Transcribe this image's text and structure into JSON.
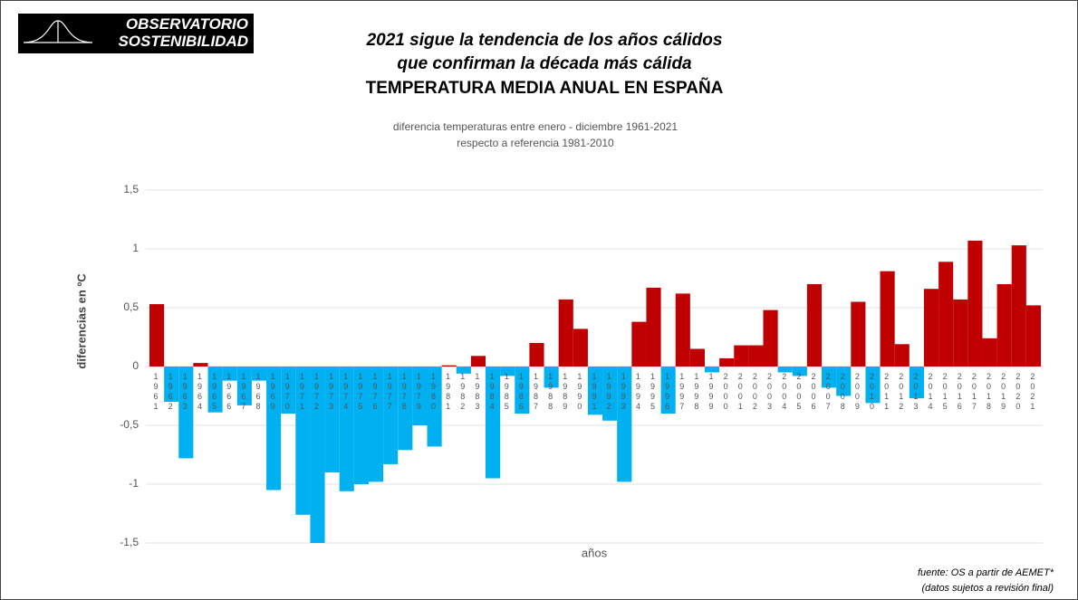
{
  "logo": {
    "line1": "OBSERVATORIO",
    "line2": "SOSTENIBILIDAD"
  },
  "chart_data": {
    "type": "bar",
    "title_lines": [
      "2021 sigue la tendencia de los años cálidos",
      "que confirman la década más cálida",
      "TEMPERATURA MEDIA ANUAL EN ESPAÑA"
    ],
    "subtitle_lines": [
      "diferencia temperaturas entre enero - diciembre 1961-2021",
      "respecto a referencia 1981-2010"
    ],
    "y_label": "diferencias en ºC",
    "x_label": "años",
    "categories": [
      "1961",
      "1962",
      "1963",
      "1964",
      "1965",
      "1966",
      "1967",
      "1968",
      "1969",
      "1970",
      "1971",
      "1972",
      "1973",
      "1974",
      "1975",
      "1976",
      "1977",
      "1978",
      "1979",
      "1980",
      "1981",
      "1982",
      "1983",
      "1984",
      "1985",
      "1986",
      "1987",
      "1988",
      "1989",
      "1990",
      "1991",
      "1992",
      "1993",
      "1994",
      "1995",
      "1996",
      "1997",
      "1998",
      "1999",
      "2000",
      "2001",
      "2002",
      "2003",
      "2004",
      "2005",
      "2006",
      "2007",
      "2008",
      "2009",
      "2010",
      "2011",
      "2012",
      "2013",
      "2014",
      "2015",
      "2016",
      "2017",
      "2018",
      "2019",
      "2020",
      "2021"
    ],
    "values": [
      0.53,
      -0.3,
      -0.78,
      0.03,
      -0.39,
      -0.12,
      -0.33,
      -0.12,
      -1.05,
      -0.4,
      -1.26,
      -1.5,
      -0.9,
      -1.06,
      -1.0,
      -0.98,
      -0.83,
      -0.71,
      -0.5,
      -0.68,
      0.01,
      -0.06,
      0.09,
      -0.95,
      -0.08,
      -0.4,
      0.2,
      -0.18,
      0.57,
      0.32,
      -0.41,
      -0.46,
      -0.98,
      0.38,
      0.67,
      -0.4,
      0.62,
      0.15,
      -0.05,
      0.07,
      0.18,
      0.18,
      0.48,
      -0.05,
      -0.08,
      0.7,
      -0.18,
      -0.25,
      0.55,
      -0.31,
      0.81,
      0.19,
      -0.27,
      0.66,
      0.89,
      0.57,
      1.07,
      0.24,
      0.7,
      1.03,
      0.52
    ],
    "colors": {
      "above": "#c00000",
      "below": "#00b0f0"
    },
    "ylim": [
      -1.5,
      1.5
    ],
    "yticks": [
      {
        "value": -1.5,
        "label": "-1,5"
      },
      -1,
      {
        "value": -0.5,
        "label": "-0,5"
      },
      0,
      {
        "value": 0.5,
        "label": "0,5"
      },
      1,
      {
        "value": 1.5,
        "label": "1,5"
      }
    ],
    "grid": true,
    "source_lines": [
      "fuente: OS a partir de AEMET*",
      "(datos sujetos a revisión final)"
    ]
  }
}
